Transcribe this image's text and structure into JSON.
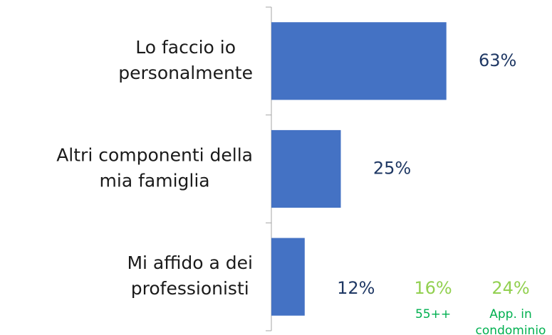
{
  "chart_data": {
    "type": "barh",
    "categories": [
      [
        "Lo faccio io",
        "personalmente"
      ],
      [
        "Altri componenti della",
        "mia famiglia"
      ],
      [
        "Mi affido a dei",
        "professionisti"
      ]
    ],
    "values": [
      63,
      25,
      12
    ],
    "value_labels": [
      "63%",
      "25%",
      "12%"
    ],
    "color": "#4472c4",
    "xlim": [
      0,
      100
    ],
    "annotations": [
      {
        "text": "16%",
        "note": [
          "55++"
        ]
      },
      {
        "text": "24%",
        "note": [
          "App. in",
          "condominio"
        ]
      }
    ]
  }
}
